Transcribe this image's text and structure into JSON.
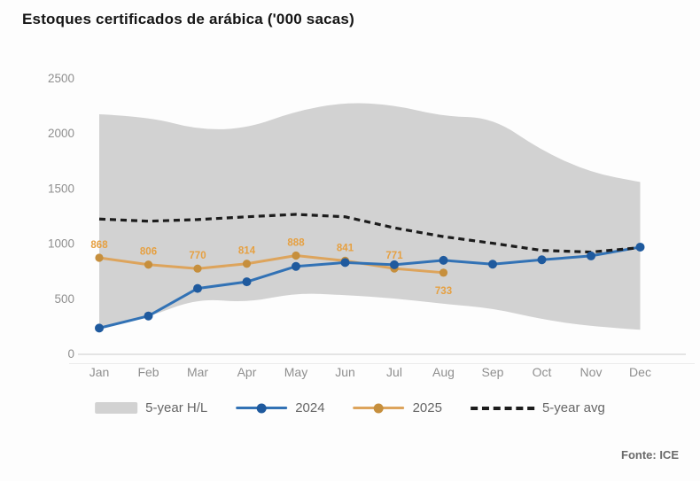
{
  "title": "Estoques certificados de arábica ('000 sacas)",
  "source_label": "Fonte: ICE",
  "legend": {
    "items": [
      {
        "label": "5-year H/L",
        "swatch": "band"
      },
      {
        "label": "2024",
        "swatch": "line-dot"
      },
      {
        "label": "2025",
        "swatch": "line-dot"
      },
      {
        "label": "5-year avg",
        "swatch": "dashed"
      }
    ]
  },
  "colors": {
    "band": "#d2d2d2",
    "line_2024": "#3272b5",
    "marker_2024": "#1f5a9e",
    "line_2025": "#dda45c",
    "marker_2025": "#c68f3d",
    "label_2025": "#e6a041",
    "avg_line": "#1c1c1c",
    "axis_text": "#8f8f8f",
    "legend_text": "#666666",
    "title_text": "#151515",
    "source_text": "#6a6a6a",
    "axis_line": "#dcdcdc"
  },
  "chart_data": {
    "type": "line",
    "title": "Estoques certificados de arábica ('000 sacas)",
    "unit": "'000 sacas",
    "categories": [
      "Jan",
      "Feb",
      "Mar",
      "Apr",
      "May",
      "Jun",
      "Jul",
      "Aug",
      "Sep",
      "Oct",
      "Nov",
      "Dec"
    ],
    "y_ticks": [
      0,
      500,
      1000,
      1500,
      2000,
      2500
    ],
    "ylim": [
      0,
      2500
    ],
    "grid": false,
    "legend_position": "bottom",
    "series": [
      {
        "name": "5-year H/L",
        "type": "band",
        "high": [
          2170,
          2150,
          2030,
          2040,
          2200,
          2280,
          2255,
          2150,
          2140,
          1840,
          1640,
          1555
        ],
        "low": [
          225,
          330,
          500,
          460,
          550,
          530,
          500,
          450,
          410,
          310,
          245,
          215
        ]
      },
      {
        "name": "2024",
        "type": "line",
        "values": [
          230,
          340,
          590,
          650,
          790,
          825,
          805,
          845,
          810,
          850,
          885,
          965
        ]
      },
      {
        "name": "2025",
        "type": "line",
        "values": [
          868,
          806,
          770,
          814,
          888,
          841,
          771,
          733
        ],
        "data_labels": [
          868,
          806,
          770,
          814,
          888,
          841,
          771,
          733
        ]
      },
      {
        "name": "5-year avg",
        "type": "line",
        "style": "dashed",
        "values": [
          1220,
          1200,
          1215,
          1240,
          1262,
          1240,
          1140,
          1060,
          1000,
          935,
          920,
          960
        ]
      }
    ]
  }
}
